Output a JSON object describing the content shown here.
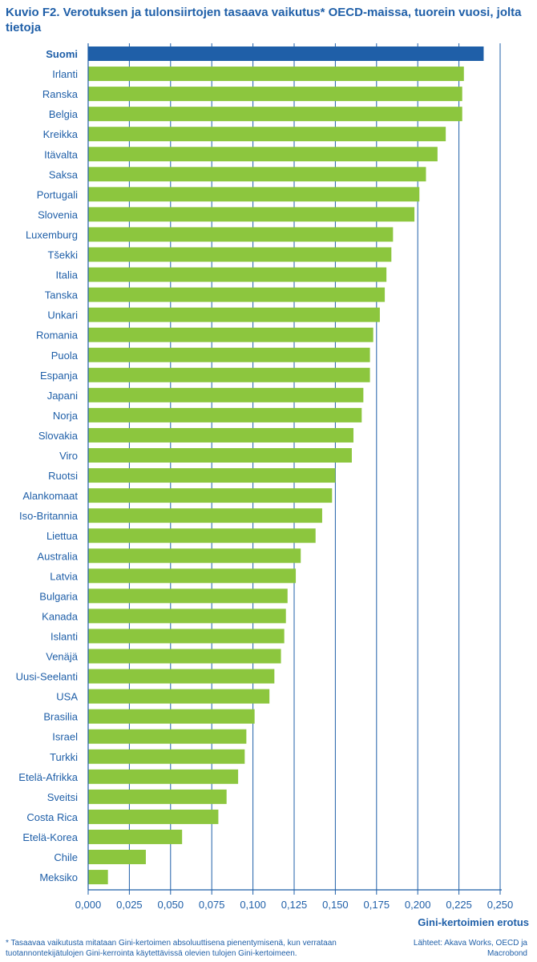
{
  "chart_data": {
    "type": "bar",
    "orientation": "horizontal",
    "title": "Kuvio F2. Verotuksen ja tulonsiirtojen tasaava vaikutus* OECD-maissa, tuorein vuosi, jolta tietoja",
    "xlabel": "Gini-kertoimien erotus",
    "ylabel": "",
    "xlim": [
      0,
      0.25
    ],
    "x_ticks": [
      0,
      0.025,
      0.05,
      0.075,
      0.1,
      0.125,
      0.15,
      0.175,
      0.2,
      0.225,
      0.25
    ],
    "x_tick_labels": [
      "0,000",
      "0,025",
      "0,050",
      "0,075",
      "0,100",
      "0,125",
      "0,150",
      "0,175",
      "0,200",
      "0,225",
      "0,250"
    ],
    "grid": true,
    "highlight": "Suomi",
    "categories": [
      "Suomi",
      "Irlanti",
      "Ranska",
      "Belgia",
      "Kreikka",
      "Itävalta",
      "Saksa",
      "Portugali",
      "Slovenia",
      "Luxemburg",
      "Tšekki",
      "Italia",
      "Tanska",
      "Unkari",
      "Romania",
      "Puola",
      "Espanja",
      "Japani",
      "Norja",
      "Slovakia",
      "Viro",
      "Ruotsi",
      "Alankomaat",
      "Iso-Britannia",
      "Liettua",
      "Australia",
      "Latvia",
      "Bulgaria",
      "Kanada",
      "Islanti",
      "Venäjä",
      "Uusi-Seelanti",
      "USA",
      "Brasilia",
      "Israel",
      "Turkki",
      "Etelä-Afrikka",
      "Sveitsi",
      "Costa Rica",
      "Etelä-Korea",
      "Chile",
      "Meksiko"
    ],
    "values": [
      0.24,
      0.228,
      0.227,
      0.227,
      0.217,
      0.212,
      0.205,
      0.201,
      0.198,
      0.185,
      0.184,
      0.181,
      0.18,
      0.177,
      0.173,
      0.171,
      0.171,
      0.167,
      0.166,
      0.161,
      0.16,
      0.15,
      0.148,
      0.142,
      0.138,
      0.129,
      0.126,
      0.121,
      0.12,
      0.119,
      0.117,
      0.113,
      0.11,
      0.101,
      0.096,
      0.095,
      0.091,
      0.084,
      0.079,
      0.057,
      0.035,
      0.012
    ]
  },
  "colors": {
    "highlight_bar": "#1f5fa8",
    "bar": "#8cc63e",
    "text": "#1f5fa8",
    "grid": "#1f5fa8"
  },
  "footnote": "* Tasaavaa vaikutusta mitataan Gini-kertoimen absoluuttisena pienentymisenä, kun verrataan tuotannontekijätulojen Gini-kerrointa käytettävissä olevien tulojen Gini-kertoimeen.",
  "sources": "Lähteet: Akava Works, OECD ja Macrobond"
}
